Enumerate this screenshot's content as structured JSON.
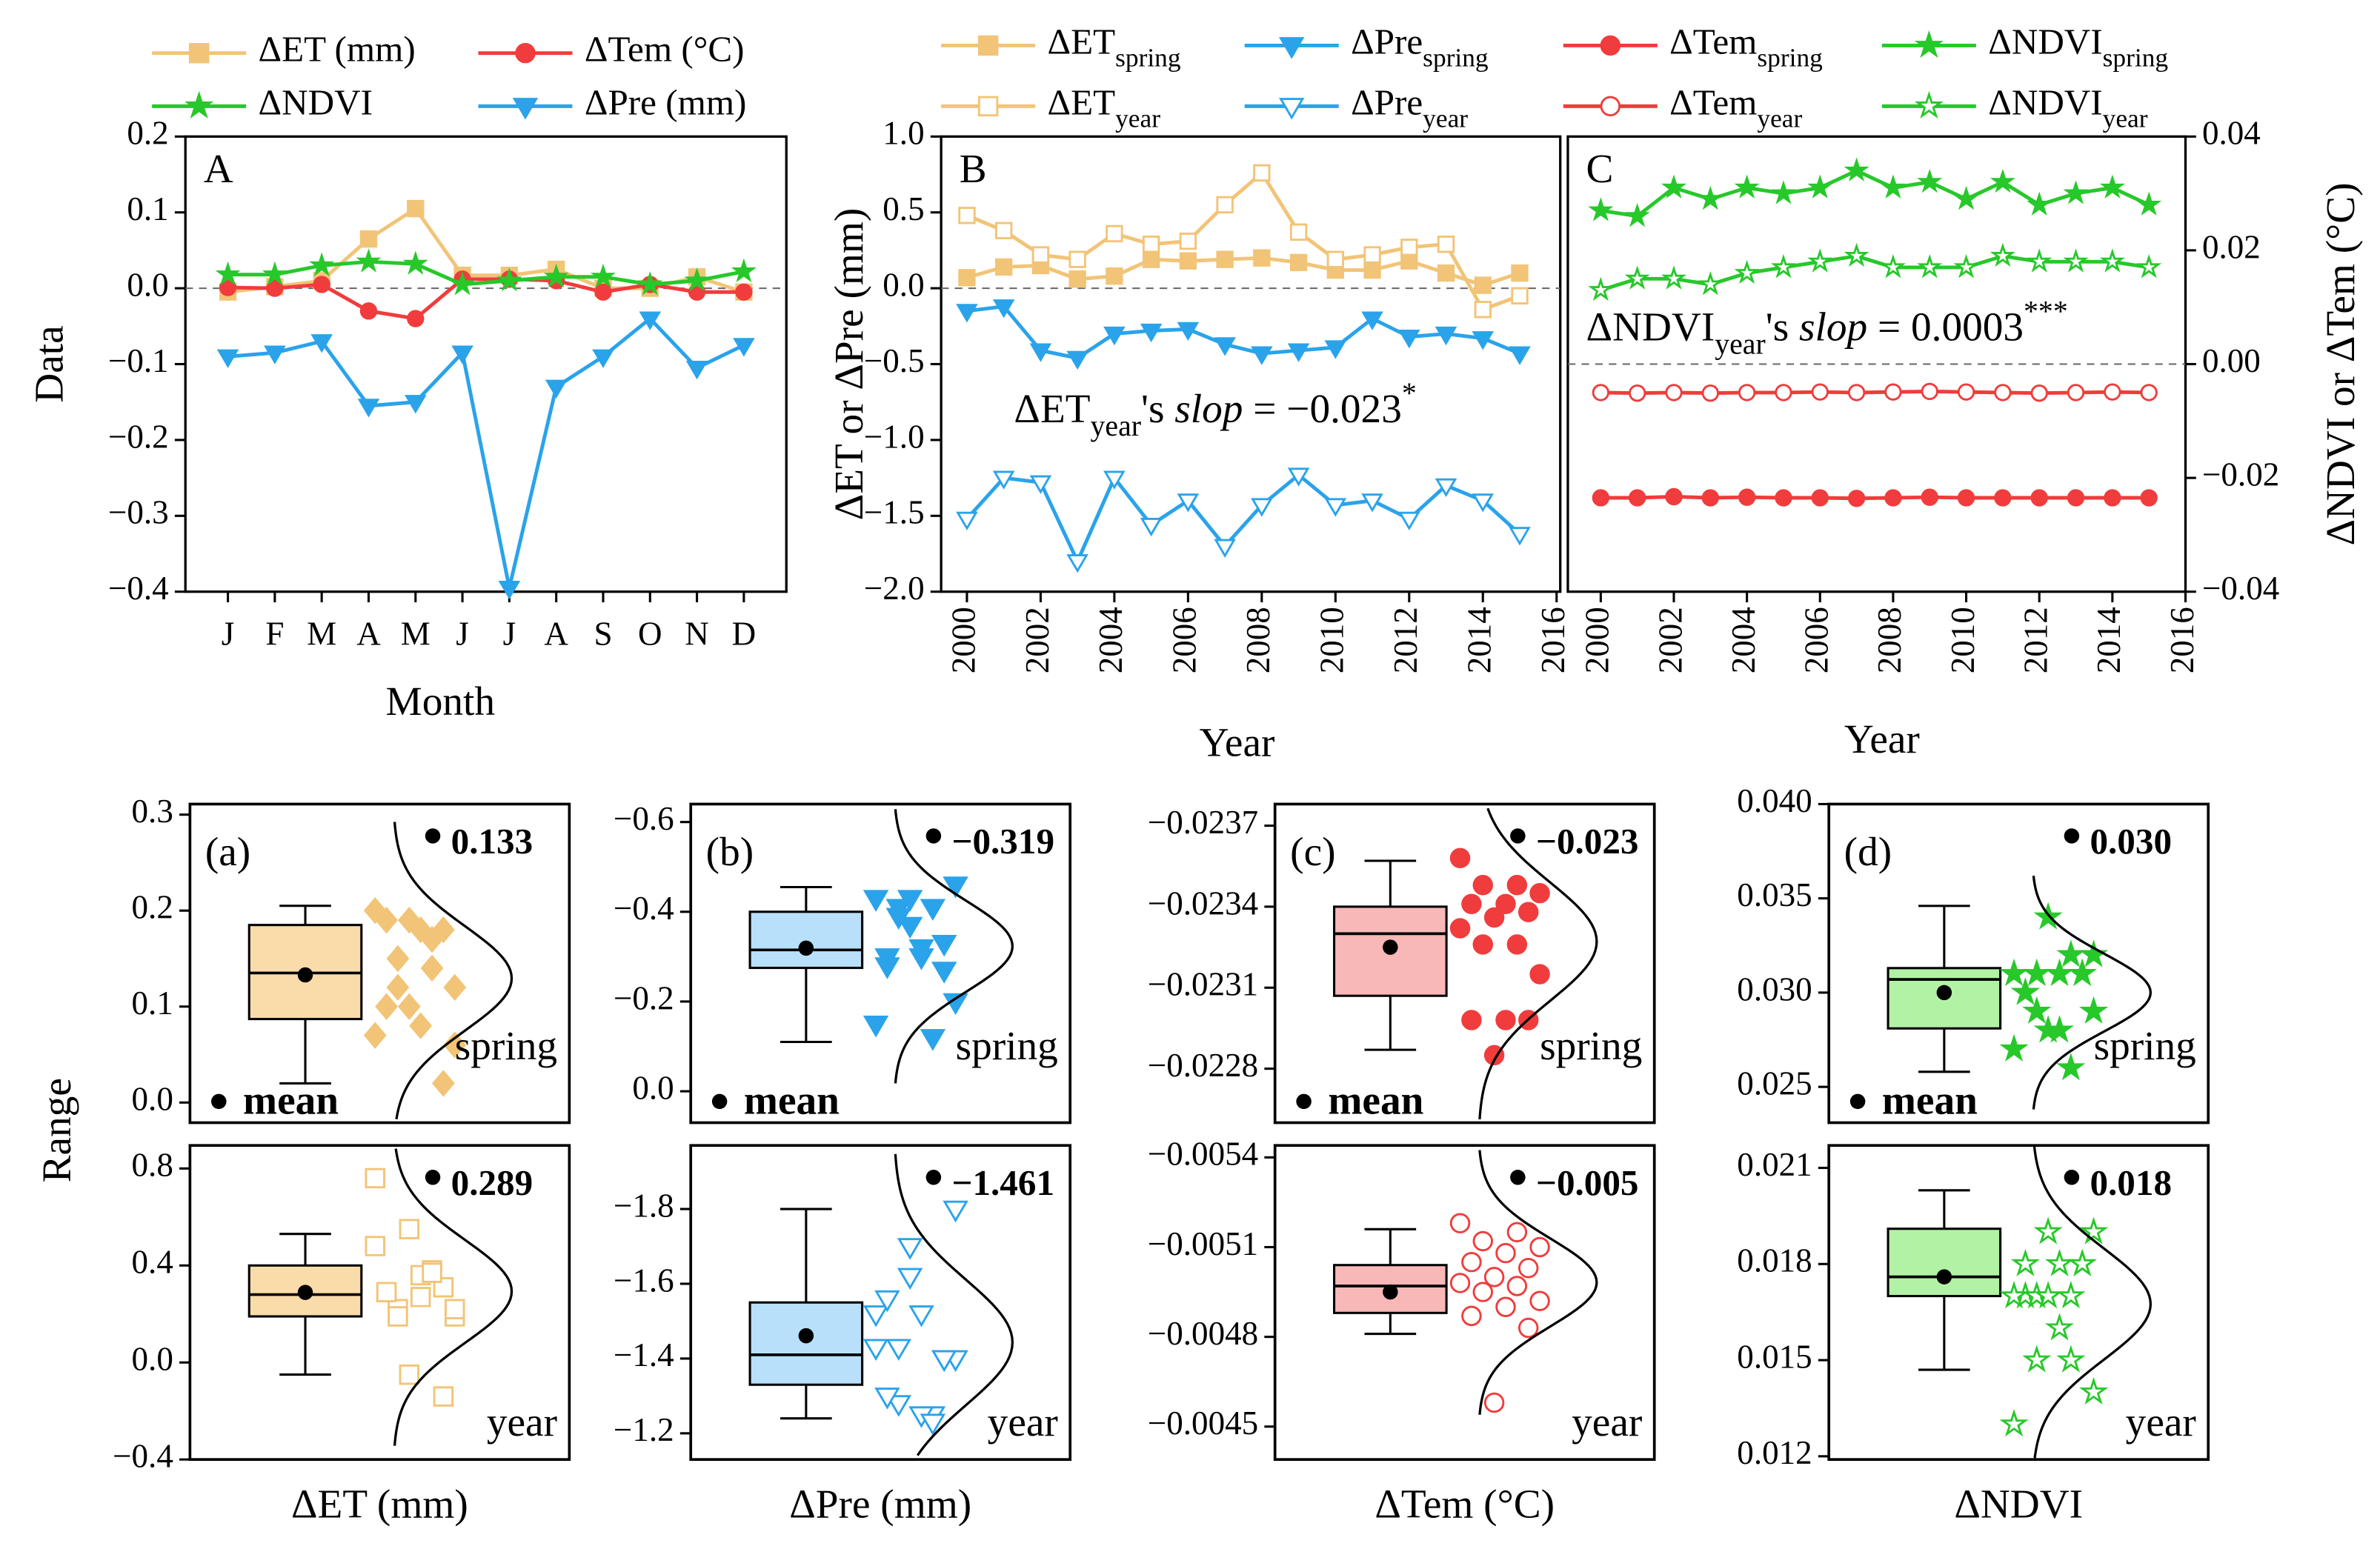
{
  "chart_data": [
    {
      "type": "line",
      "panel_label": "A",
      "xlabel": "Month",
      "ylabel": "Data",
      "categories": [
        "J",
        "F",
        "M",
        "A",
        "M",
        "J",
        "J",
        "A",
        "S",
        "O",
        "N",
        "D"
      ],
      "ylim": [
        -0.4,
        0.2
      ],
      "yticks": [
        {
          "value": -0.4,
          "label": "−0.4"
        },
        {
          "value": -0.3,
          "label": "−0.3"
        },
        {
          "value": -0.2,
          "label": "−0.2"
        },
        {
          "value": -0.1,
          "label": "−0.1"
        },
        {
          "value": 0,
          "label": "0.0"
        },
        0.1,
        0.2
      ],
      "zero_line": true,
      "yaxis_side": "left",
      "series": [
        {
          "name": "ΔET (mm)",
          "color": "#f2c477",
          "marker": "square",
          "marker_filled": true,
          "values": [
            -0.005,
            0.002,
            0.01,
            0.065,
            0.105,
            0.017,
            0.017,
            0.025,
            0,
            0,
            0.015,
            -0.005
          ]
        },
        {
          "name": "ΔTem (°C)",
          "color": "#f03c3c",
          "marker": "circle",
          "marker_filled": true,
          "values": [
            0.001,
            0,
            0.005,
            -0.03,
            -0.04,
            0.012,
            0.012,
            0.01,
            -0.005,
            0.005,
            -0.005,
            -0.005
          ]
        },
        {
          "name": "ΔNDVI",
          "color": "#27c82a",
          "marker": "star",
          "marker_filled": true,
          "values": [
            0.018,
            0.018,
            0.03,
            0.035,
            0.032,
            0.005,
            0.01,
            0.015,
            0.015,
            0.005,
            0.01,
            0.022
          ]
        },
        {
          "name": "ΔPre (mm)",
          "color": "#2aa3ea",
          "marker": "triangle-down",
          "marker_filled": true,
          "values": [
            -0.09,
            -0.085,
            -0.07,
            -0.155,
            -0.15,
            -0.085,
            -0.395,
            -0.13,
            -0.09,
            -0.04,
            -0.105,
            -0.075
          ]
        }
      ]
    },
    {
      "type": "line",
      "panel_label": "B",
      "xlabel": "Year",
      "ylabel": "ΔET or ΔPre (mm)",
      "x": [
        2000,
        2001,
        2002,
        2003,
        2004,
        2005,
        2006,
        2007,
        2008,
        2009,
        2010,
        2011,
        2012,
        2013,
        2014,
        2015
      ],
      "xlim": [
        1999.3,
        2016.1
      ],
      "xticks": [
        2000,
        2002,
        2004,
        2006,
        2008,
        2010,
        2012,
        2014,
        2016
      ],
      "ylim": [
        -2,
        1
      ],
      "yticks": [
        {
          "value": -2,
          "label": "−2.0"
        },
        {
          "value": -1.5,
          "label": "−1.5"
        },
        {
          "value": -1,
          "label": "−1.0"
        },
        {
          "value": -0.5,
          "label": "−0.5"
        },
        {
          "value": 0,
          "label": "0.0"
        },
        0.5,
        {
          "value": 1,
          "label": "1.0"
        }
      ],
      "zero_line": true,
      "yaxis_side": "left",
      "annotation": {
        "parts": [
          "ΔET",
          "year",
          "'s ",
          "slop",
          " = −0.023",
          "*"
        ],
        "styles": [
          "normal",
          "sub",
          "normal",
          "italic",
          "normal",
          "sup"
        ]
      },
      "series": [
        {
          "name": "ΔET",
          "name_sub": "spring",
          "color": "#f2c477",
          "marker": "square",
          "marker_filled": true,
          "values": [
            0.07,
            0.14,
            0.15,
            0.06,
            0.08,
            0.19,
            0.18,
            0.19,
            0.2,
            0.17,
            0.12,
            0.12,
            0.18,
            0.1,
            0.02,
            0.1
          ]
        },
        {
          "name": "ΔPre",
          "name_sub": "spring",
          "color": "#2aa3ea",
          "marker": "triangle-down",
          "marker_filled": true,
          "values": [
            -0.15,
            -0.12,
            -0.41,
            -0.46,
            -0.3,
            -0.28,
            -0.27,
            -0.37,
            -0.43,
            -0.41,
            -0.39,
            -0.2,
            -0.32,
            -0.3,
            -0.33,
            -0.43
          ]
        },
        {
          "name": "ΔET",
          "name_sub": "year",
          "color": "#f2c477",
          "marker": "square",
          "marker_filled": false,
          "values": [
            0.48,
            0.38,
            0.22,
            0.19,
            0.36,
            0.29,
            0.31,
            0.55,
            0.76,
            0.37,
            0.19,
            0.22,
            0.27,
            0.29,
            -0.14,
            -0.05
          ]
        },
        {
          "name": "ΔPre",
          "name_sub": "year",
          "color": "#2aa3ea",
          "marker": "triangle-down",
          "marker_filled": false,
          "values": [
            -1.52,
            -1.25,
            -1.28,
            -1.8,
            -1.25,
            -1.56,
            -1.4,
            -1.7,
            -1.43,
            -1.23,
            -1.43,
            -1.4,
            -1.52,
            -1.3,
            -1.4,
            -1.62
          ]
        }
      ]
    },
    {
      "type": "line",
      "panel_label": "C",
      "xlabel": "Year",
      "ylabel": "ΔNDVI or ΔTem (°C)",
      "x": [
        2000,
        2001,
        2002,
        2003,
        2004,
        2005,
        2006,
        2007,
        2008,
        2009,
        2010,
        2011,
        2012,
        2013,
        2014,
        2015
      ],
      "xlim": [
        1999.1,
        2016
      ],
      "xticks": [
        2000,
        2002,
        2004,
        2006,
        2008,
        2010,
        2012,
        2014,
        2016
      ],
      "ylim": [
        -0.04,
        0.04
      ],
      "yticks": [
        {
          "value": -0.04,
          "label": "−0.04"
        },
        {
          "value": -0.02,
          "label": "−0.02"
        },
        {
          "value": 0,
          "label": "0.00"
        },
        0.02,
        0.04
      ],
      "zero_line": true,
      "yaxis_side": "right",
      "annotation": {
        "parts": [
          "ΔNDVI",
          "year",
          "'s ",
          "slop",
          " = 0.0003",
          "***"
        ],
        "styles": [
          "normal",
          "sub",
          "normal",
          "italic",
          "normal",
          "sup"
        ]
      },
      "series": [
        {
          "name": "ΔTem",
          "name_sub": "spring",
          "color": "#f03c3c",
          "marker": "circle",
          "marker_filled": true,
          "values": [
            -0.0235,
            -0.0235,
            -0.0233,
            -0.0235,
            -0.0234,
            -0.0235,
            -0.0235,
            -0.0236,
            -0.0235,
            -0.0234,
            -0.0235,
            -0.0235,
            -0.0235,
            -0.0235,
            -0.0235,
            -0.0235
          ]
        },
        {
          "name": "ΔNDVI",
          "name_sub": "spring",
          "color": "#27c82a",
          "marker": "star",
          "marker_filled": true,
          "values": [
            0.027,
            0.026,
            0.031,
            0.029,
            0.031,
            0.03,
            0.031,
            0.034,
            0.031,
            0.032,
            0.029,
            0.032,
            0.028,
            0.03,
            0.031,
            0.028
          ]
        },
        {
          "name": "ΔTem",
          "name_sub": "year",
          "color": "#f03c3c",
          "marker": "circle",
          "marker_filled": false,
          "values": [
            -0.005,
            -0.0051,
            -0.005,
            -0.0051,
            -0.005,
            -0.005,
            -0.0049,
            -0.005,
            -0.0049,
            -0.0048,
            -0.0049,
            -0.005,
            -0.0051,
            -0.005,
            -0.0049,
            -0.005
          ]
        },
        {
          "name": "ΔNDVI",
          "name_sub": "year",
          "color": "#27c82a",
          "marker": "star",
          "marker_filled": false,
          "values": [
            0.013,
            0.015,
            0.015,
            0.014,
            0.016,
            0.017,
            0.018,
            0.019,
            0.017,
            0.017,
            0.017,
            0.019,
            0.018,
            0.018,
            0.018,
            0.017
          ]
        }
      ]
    },
    {
      "type": "box",
      "panel_label": "(a)",
      "group_label": "spring",
      "legend_label": "mean",
      "ylabel": "Range",
      "ylim": [
        -0.021,
        0.311
      ],
      "yticks": [
        {
          "value": 0,
          "label": "0.0"
        },
        0.1,
        0.2,
        0.3
      ],
      "color": "#f2c477",
      "box_color": "#f9dcaa",
      "marker": "diamond",
      "marker_filled": true,
      "box": {
        "min": 0.02,
        "q1": 0.087,
        "median": 0.135,
        "q3": 0.185,
        "max": 0.205
      },
      "mean": 0.133,
      "mean_label": "0.133",
      "points": [
        0.07,
        0.14,
        0.15,
        0.06,
        0.08,
        0.19,
        0.18,
        0.19,
        0.2,
        0.17,
        0.12,
        0.12,
        0.18,
        0.1,
        0.02,
        0.1
      ]
    },
    {
      "type": "box",
      "group_label": "year",
      "xlabel": "ΔET (mm)",
      "ylim": [
        -0.4,
        0.895
      ],
      "yticks": [
        {
          "value": -0.4,
          "label": "−0.4"
        },
        {
          "value": 0,
          "label": "0.0"
        },
        0.4,
        0.8
      ],
      "color": "#f2c477",
      "box_color": "#f9dcaa",
      "marker": "square",
      "marker_filled": false,
      "box": {
        "min": -0.05,
        "q1": 0.19,
        "median": 0.28,
        "q3": 0.4,
        "max": 0.53
      },
      "mean": 0.289,
      "mean_label": "0.289",
      "points": [
        0.48,
        0.38,
        0.22,
        0.19,
        0.36,
        0.29,
        0.31,
        0.55,
        0.76,
        0.37,
        0.19,
        0.22,
        0.27,
        0.29,
        -0.14,
        -0.05
      ]
    },
    {
      "type": "box",
      "panel_label": "(b)",
      "group_label": "spring",
      "legend_label": "mean",
      "ylim": [
        0.07,
        -0.64
      ],
      "yticks": [
        {
          "value": -0.6,
          "label": "−0.6"
        },
        {
          "value": -0.4,
          "label": "−0.4"
        },
        {
          "value": -0.2,
          "label": "−0.2"
        },
        {
          "value": 0,
          "label": "0.0"
        }
      ],
      "color": "#2aa3ea",
      "box_color": "#b8e0fa",
      "marker": "triangle-down",
      "marker_filled": true,
      "box": {
        "min": -0.455,
        "q1": -0.4,
        "median": -0.315,
        "q3": -0.275,
        "max": -0.11
      },
      "mean": -0.319,
      "mean_label": "−0.319",
      "points": [
        -0.15,
        -0.12,
        -0.41,
        -0.46,
        -0.3,
        -0.28,
        -0.27,
        -0.37,
        -0.43,
        -0.41,
        -0.39,
        -0.2,
        -0.32,
        -0.3,
        -0.33,
        -0.43
      ]
    },
    {
      "type": "box",
      "group_label": "year",
      "xlabel": "ΔPre (mm)",
      "ylim": [
        -1.13,
        -1.97
      ],
      "yticks": [
        {
          "value": -1.8,
          "label": "−1.8"
        },
        {
          "value": -1.6,
          "label": "−1.6"
        },
        {
          "value": -1.4,
          "label": "−1.4"
        },
        {
          "value": -1.2,
          "label": "−1.2"
        }
      ],
      "color": "#2aa3ea",
      "box_color": "#b8e0fa",
      "marker": "triangle-down",
      "marker_filled": false,
      "box": {
        "min": -1.8,
        "q1": -1.55,
        "median": -1.41,
        "q3": -1.33,
        "max": -1.24
      },
      "mean": -1.461,
      "mean_label": "−1.461",
      "points": [
        -1.52,
        -1.25,
        -1.28,
        -1.8,
        -1.25,
        -1.56,
        -1.4,
        -1.7,
        -1.43,
        -1.23,
        -1.43,
        -1.4,
        -1.52,
        -1.3,
        -1.4,
        -1.62
      ]
    },
    {
      "type": "box",
      "panel_label": "(c)",
      "group_label": "spring",
      "legend_label": "mean",
      "ylim": [
        -0.0226,
        -0.02378
      ],
      "yticks": [
        {
          "value": -0.0237,
          "label": "−0.0237"
        },
        {
          "value": -0.0234,
          "label": "−0.0234"
        },
        {
          "value": -0.0231,
          "label": "−0.0231"
        },
        {
          "value": -0.0228,
          "label": "−0.0228"
        }
      ],
      "color": "#f03c3c",
      "box_color": "#f8b8b8",
      "marker": "circle",
      "marker_filled": true,
      "box": {
        "min": -0.02357,
        "q1": -0.0234,
        "median": -0.0233,
        "q3": -0.02307,
        "max": -0.02287
      },
      "mean": -0.02325,
      "mean_label": "−0.023",
      "points": [
        -0.02358,
        -0.02348,
        -0.02348,
        -0.02345,
        -0.02341,
        -0.02341,
        -0.02338,
        -0.02336,
        -0.02332,
        -0.02326,
        -0.02326,
        -0.02315,
        -0.02298,
        -0.02298,
        -0.02298,
        -0.02285
      ]
    },
    {
      "type": "box",
      "group_label": "year",
      "xlabel": "ΔTem (°C)",
      "ylim": [
        -0.00439,
        -0.00544
      ],
      "yticks": [
        {
          "value": -0.0054,
          "label": "−0.0054"
        },
        {
          "value": -0.0051,
          "label": "−0.0051"
        },
        {
          "value": -0.0048,
          "label": "−0.0048"
        },
        {
          "value": -0.0045,
          "label": "−0.0045"
        }
      ],
      "color": "#f03c3c",
      "box_color": "#f8b8b8",
      "marker": "circle",
      "marker_filled": false,
      "box": {
        "min": -0.00516,
        "q1": -0.00504,
        "median": -0.00497,
        "q3": -0.00488,
        "max": -0.00481
      },
      "mean": -0.00495,
      "mean_label": "−0.005",
      "points": [
        -0.00518,
        -0.00515,
        -0.00512,
        -0.0051,
        -0.00508,
        -0.00505,
        -0.00503,
        -0.005,
        -0.00498,
        -0.00497,
        -0.00495,
        -0.00492,
        -0.0049,
        -0.00487,
        -0.00483,
        -0.00458
      ]
    },
    {
      "type": "box",
      "panel_label": "(d)",
      "group_label": "spring",
      "legend_label": "mean",
      "ylim": [
        0.0231,
        0.04
      ],
      "yticks": [
        {
          "value": 0.04,
          "label": "0.040"
        },
        0.035,
        {
          "value": 0.03,
          "label": "0.030"
        },
        0.025
      ],
      "color": "#27c82a",
      "box_color": "#b2f2a4",
      "marker": "star",
      "marker_filled": true,
      "box": {
        "min": 0.0258,
        "q1": 0.0281,
        "median": 0.0307,
        "q3": 0.0313,
        "max": 0.0346
      },
      "mean": 0.03,
      "mean_label": "0.030",
      "points": [
        0.027,
        0.026,
        0.031,
        0.029,
        0.031,
        0.03,
        0.031,
        0.034,
        0.031,
        0.032,
        0.029,
        0.032,
        0.028,
        0.03,
        0.031,
        0.028
      ]
    },
    {
      "type": "box",
      "group_label": "year",
      "xlabel": "ΔNDVI",
      "ylim": [
        0.0119,
        0.0217
      ],
      "yticks": [
        0.021,
        0.018,
        0.015,
        0.012
      ],
      "color": "#27c82a",
      "box_color": "#b2f2a4",
      "marker": "star",
      "marker_filled": false,
      "box": {
        "min": 0.0147,
        "q1": 0.017,
        "median": 0.0176,
        "q3": 0.0191,
        "max": 0.0203
      },
      "mean": 0.0176,
      "mean_label": "0.018",
      "points": [
        0.013,
        0.015,
        0.015,
        0.014,
        0.016,
        0.017,
        0.018,
        0.019,
        0.017,
        0.017,
        0.017,
        0.019,
        0.018,
        0.018,
        0.018,
        0.017
      ]
    }
  ]
}
